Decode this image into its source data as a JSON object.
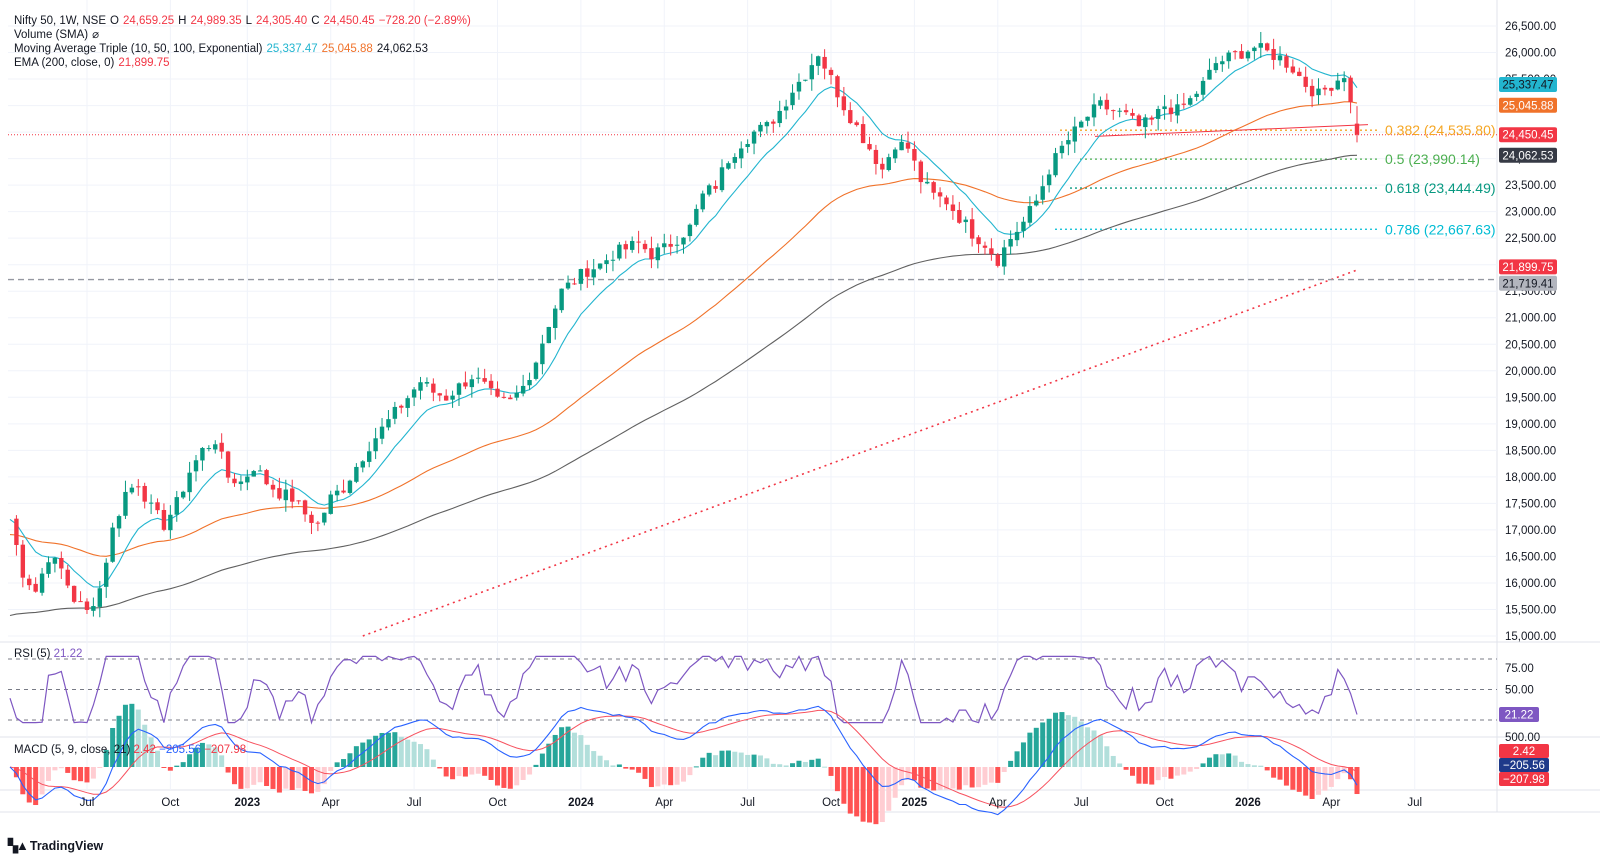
{
  "header": {
    "title": "Nifty 50, 1W, NSE",
    "open_label": "O",
    "open": "24,659.25",
    "high_label": "H",
    "high": "24,989.35",
    "low_label": "L",
    "low": "24,305.40",
    "close_label": "C",
    "close": "24,450.45",
    "change": "−728.20 (−2.89%)",
    "volume": "Volume (SMA)",
    "volume_icon": "⌀",
    "ma_triple": "Moving Average Triple (10, 50, 100, Exponential)",
    "ma1": "25,337.47",
    "ma2": "25,045.88",
    "ma3": "24,062.53",
    "ema": "EMA (200, close, 0)",
    "ema_val": "21,899.75"
  },
  "rsi": {
    "label": "RSI (5)",
    "value": "21.22",
    "ticks": [
      "75.00",
      "50.00"
    ],
    "levels": [
      85,
      50,
      15
    ]
  },
  "macd": {
    "label": "MACD (5, 9, close, 21)",
    "hist": "2.42",
    "macd": "−205.56",
    "signal": "−207.98",
    "axis_tick": "500.00"
  },
  "footer": {
    "logo": "TradingView",
    "logo_icon": "tradingview-logo"
  },
  "colors": {
    "up": "#089981",
    "down": "#f23645",
    "ma10": "#22b5cf",
    "ma50": "#f0722a",
    "ma100": "#606060",
    "ema200": "#f23645",
    "rsi": "#7e57c2",
    "macd": "#2962ff",
    "signal": "#f7525f",
    "fib382": "#f5a623",
    "fib500": "#4caf50",
    "fib618": "#089981",
    "fib786": "#00bcd4"
  },
  "chart_data": {
    "type": "candlestick",
    "symbol": "Nifty 50",
    "interval": "1W",
    "exchange": "NSE",
    "ylim": [
      15000,
      26500
    ],
    "y_ticks": [
      "26,500.00",
      "26,000.00",
      "25,500.00",
      "25,000.00",
      "24,500.00",
      "24,000.00",
      "23,500.00",
      "23,000.00",
      "22,500.00",
      "22,000.00",
      "21,500.00",
      "21,000.00",
      "20,500.00",
      "20,000.00",
      "19,500.00",
      "19,000.00",
      "18,500.00",
      "18,000.00",
      "17,500.00",
      "17,000.00",
      "16,500.00",
      "16,000.00",
      "15,500.00",
      "15,000.00"
    ],
    "x_ticks": [
      "Jul",
      "Oct",
      "2023",
      "Apr",
      "Jul",
      "Oct",
      "2024",
      "Apr",
      "Jul",
      "Oct",
      "2025",
      "Apr",
      "Jul",
      "Oct",
      "2026",
      "Apr",
      "Jul"
    ],
    "price_path": [
      [
        0,
        17200
      ],
      [
        2,
        16200
      ],
      [
        4,
        15850
      ],
      [
        6,
        16500
      ],
      [
        8,
        16250
      ],
      [
        10,
        15700
      ],
      [
        12,
        15450
      ],
      [
        14,
        15900
      ],
      [
        16,
        17000
      ],
      [
        18,
        17700
      ],
      [
        20,
        17900
      ],
      [
        22,
        17400
      ],
      [
        24,
        17100
      ],
      [
        26,
        17500
      ],
      [
        28,
        18100
      ],
      [
        30,
        18500
      ],
      [
        32,
        18700
      ],
      [
        34,
        18000
      ],
      [
        36,
        17900
      ],
      [
        38,
        18200
      ],
      [
        40,
        17900
      ],
      [
        42,
        17700
      ],
      [
        44,
        17600
      ],
      [
        46,
        17300
      ],
      [
        48,
        17100
      ],
      [
        50,
        17600
      ],
      [
        52,
        17800
      ],
      [
        54,
        18200
      ],
      [
        56,
        18600
      ],
      [
        58,
        18900
      ],
      [
        60,
        19200
      ],
      [
        62,
        19500
      ],
      [
        64,
        19800
      ],
      [
        66,
        19600
      ],
      [
        68,
        19500
      ],
      [
        70,
        19700
      ],
      [
        72,
        19900
      ],
      [
        74,
        19700
      ],
      [
        76,
        19400
      ],
      [
        78,
        19400
      ],
      [
        80,
        19700
      ],
      [
        82,
        20200
      ],
      [
        84,
        20900
      ],
      [
        86,
        21500
      ],
      [
        88,
        21700
      ],
      [
        90,
        21900
      ],
      [
        92,
        22000
      ],
      [
        94,
        22200
      ],
      [
        96,
        22300
      ],
      [
        98,
        22400
      ],
      [
        100,
        22200
      ],
      [
        102,
        22300
      ],
      [
        104,
        22500
      ],
      [
        106,
        22700
      ],
      [
        108,
        23300
      ],
      [
        110,
        23500
      ],
      [
        112,
        24000
      ],
      [
        114,
        24300
      ],
      [
        116,
        24500
      ],
      [
        118,
        24600
      ],
      [
        120,
        24900
      ],
      [
        122,
        25300
      ],
      [
        124,
        25600
      ],
      [
        126,
        26000
      ],
      [
        128,
        25500
      ],
      [
        130,
        25000
      ],
      [
        132,
        24600
      ],
      [
        134,
        24200
      ],
      [
        136,
        23800
      ],
      [
        138,
        24300
      ],
      [
        140,
        24200
      ],
      [
        142,
        23600
      ],
      [
        144,
        23300
      ],
      [
        146,
        23200
      ],
      [
        148,
        22900
      ],
      [
        150,
        22600
      ],
      [
        152,
        22400
      ],
      [
        154,
        22100
      ],
      [
        156,
        22500
      ],
      [
        158,
        22800
      ],
      [
        160,
        23200
      ],
      [
        162,
        23800
      ],
      [
        164,
        24200
      ],
      [
        166,
        24500
      ],
      [
        168,
        24800
      ],
      [
        170,
        25000
      ],
      [
        172,
        24900
      ],
      [
        174,
        24800
      ],
      [
        176,
        24600
      ],
      [
        178,
        24700
      ],
      [
        180,
        25000
      ],
      [
        182,
        24900
      ],
      [
        184,
        25100
      ],
      [
        186,
        25400
      ],
      [
        188,
        25800
      ],
      [
        190,
        25900
      ],
      [
        192,
        26000
      ],
      [
        194,
        26100
      ],
      [
        196,
        26000
      ],
      [
        198,
        25900
      ],
      [
        200,
        25700
      ],
      [
        202,
        25400
      ],
      [
        204,
        25200
      ],
      [
        206,
        25400
      ],
      [
        208,
        25600
      ],
      [
        210,
        24450
      ]
    ],
    "moving_averages": [
      {
        "name": "EMA 10",
        "last": 25337.47
      },
      {
        "name": "EMA 50",
        "last": 25045.88
      },
      {
        "name": "EMA 100",
        "last": 24062.53
      },
      {
        "name": "EMA 200",
        "last": 21899.75
      }
    ],
    "horizontal_level": 21719.41,
    "horizontal_level_label": "21,719.41",
    "last_close": 24450.45,
    "last_close_label": "24,450.45",
    "price_labels": {
      "ma10": "25,337.47",
      "ma50": "25,045.88",
      "ma100": "24,062.53",
      "ema200": "21,899.75"
    },
    "fibonacci": [
      {
        "level": "0.382",
        "price": 24535.8,
        "label": "0.382 (24,535.80)"
      },
      {
        "level": "0.5",
        "price": 23990.14,
        "label": "0.5 (23,990.14)"
      },
      {
        "level": "0.618",
        "price": 23444.49,
        "label": "0.618 (23,444.49)"
      },
      {
        "level": "0.786",
        "price": 22667.63,
        "label": "0.786 (22,667.63)"
      }
    ]
  }
}
